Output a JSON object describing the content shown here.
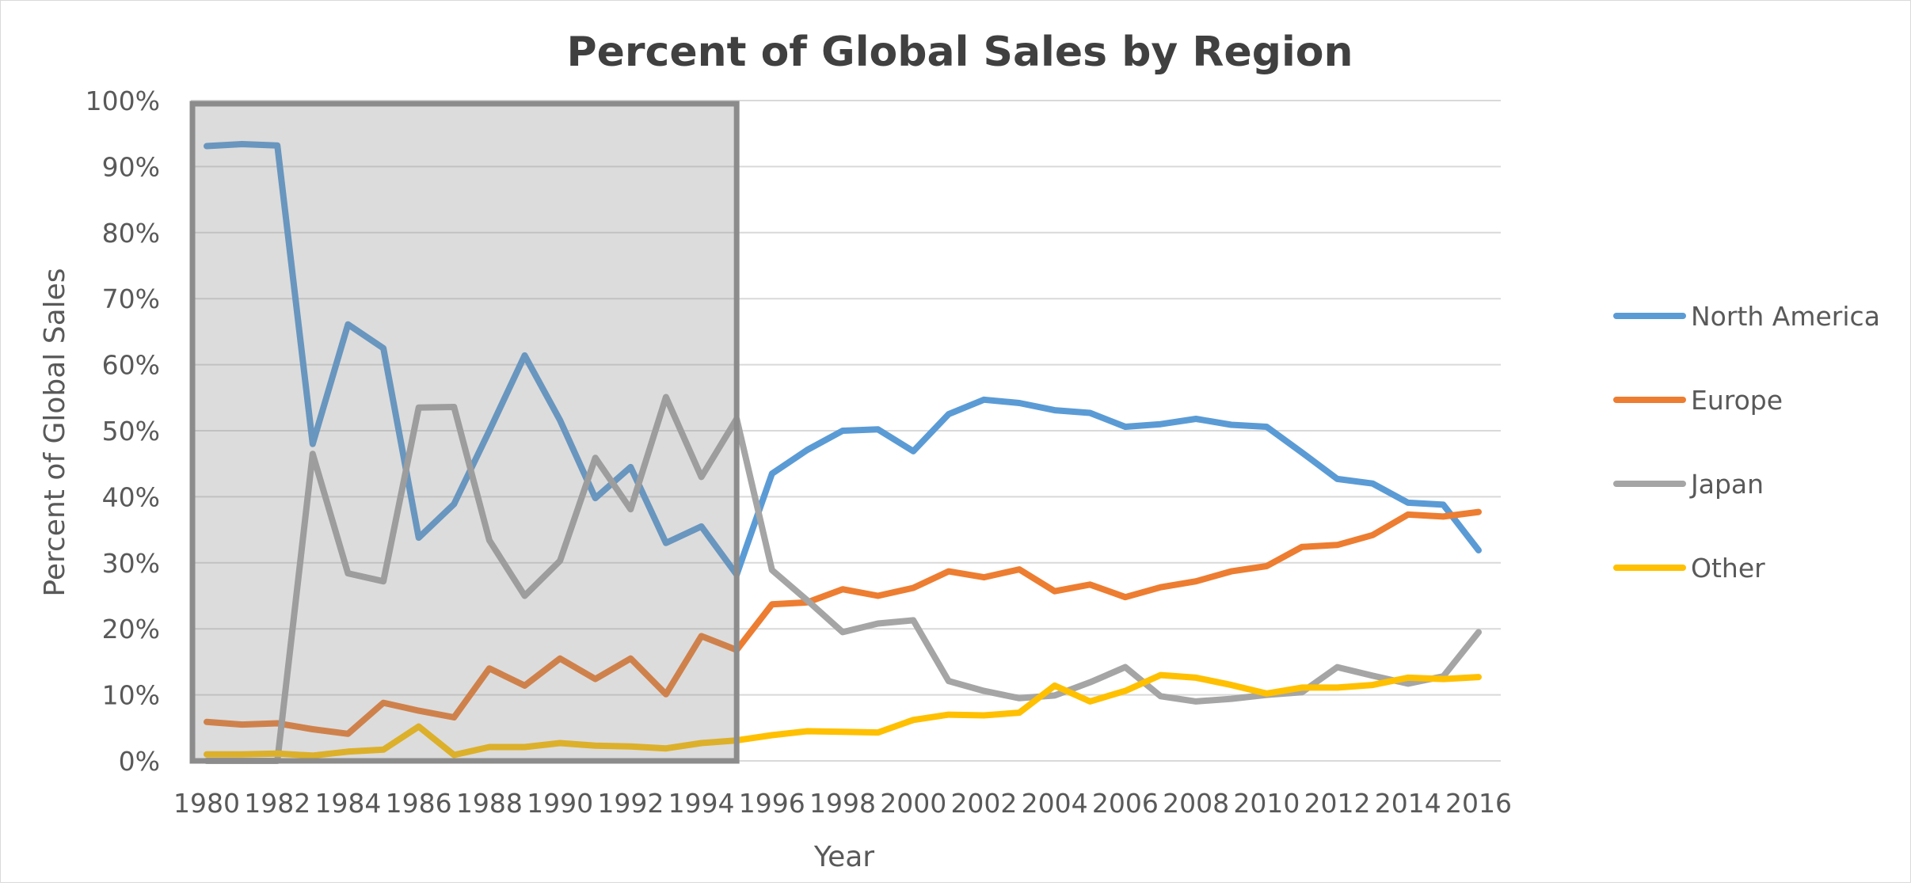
{
  "chart_data": {
    "type": "line",
    "title": "Percent of Global Sales by Region",
    "xlabel": "Year",
    "ylabel": "Percent of Global Sales",
    "ylim": [
      0,
      100
    ],
    "y_ticks": [
      "0%",
      "10%",
      "20%",
      "30%",
      "40%",
      "50%",
      "60%",
      "70%",
      "80%",
      "90%",
      "100%"
    ],
    "x_ticks": [
      "1980",
      "1982",
      "1984",
      "1986",
      "1988",
      "1990",
      "1992",
      "1994",
      "1996",
      "1998",
      "2000",
      "2002",
      "2004",
      "2006",
      "2008",
      "2010",
      "2012",
      "2014",
      "2016"
    ],
    "x": [
      1980,
      1981,
      1982,
      1983,
      1984,
      1985,
      1986,
      1987,
      1988,
      1989,
      1990,
      1991,
      1992,
      1993,
      1994,
      1995,
      1996,
      1997,
      1998,
      1999,
      2000,
      2001,
      2002,
      2003,
      2004,
      2005,
      2006,
      2007,
      2008,
      2009,
      2010,
      2011,
      2012,
      2013,
      2014,
      2015,
      2016
    ],
    "grid": true,
    "legend_position": "right",
    "highlight_region": {
      "x_start": 1980,
      "x_end": 1995
    },
    "series": [
      {
        "name": "North America",
        "color": "#5b9bd5",
        "values": [
          93.1,
          93.4,
          93.2,
          48,
          66.1,
          62.5,
          33.8,
          38.9,
          50,
          61.4,
          51.6,
          39.8,
          44.5,
          33,
          35.5,
          28.2,
          43.5,
          47.1,
          50,
          50.2,
          46.9,
          52.5,
          54.7,
          54.2,
          53.1,
          52.7,
          50.6,
          51,
          51.8,
          50.9,
          50.6,
          46.7,
          42.7,
          42,
          39.1,
          38.8,
          31.9
        ]
      },
      {
        "name": "Europe",
        "color": "#ed7d31",
        "values": [
          5.9,
          5.5,
          5.7,
          4.8,
          4.1,
          8.8,
          7.6,
          6.6,
          14,
          11.4,
          15.5,
          12.4,
          15.5,
          10.1,
          18.9,
          16.8,
          23.7,
          24,
          26,
          25,
          26.2,
          28.7,
          27.8,
          29,
          25.7,
          26.7,
          24.8,
          26.3,
          27.2,
          28.7,
          29.5,
          32.4,
          32.7,
          34.2,
          37.3,
          37,
          37.7
        ]
      },
      {
        "name": "Japan",
        "color": "#a5a5a5",
        "values": [
          0,
          0,
          0,
          46.5,
          28.4,
          27.2,
          53.5,
          53.6,
          33.4,
          25,
          30.3,
          45.9,
          38.1,
          55.1,
          43,
          51.8,
          28.9,
          24.3,
          19.5,
          20.8,
          21.3,
          12.1,
          10.6,
          9.5,
          9.9,
          11.9,
          14.2,
          9.8,
          9,
          9.4,
          10,
          10.4,
          14.2,
          12.9,
          11.7,
          12.8,
          19.5
        ]
      },
      {
        "name": "Other",
        "color": "#ffc000",
        "values": [
          1,
          1,
          1.1,
          0.8,
          1.4,
          1.7,
          5.2,
          0.9,
          2.1,
          2.1,
          2.7,
          2.3,
          2.2,
          1.9,
          2.7,
          3.1,
          3.9,
          4.5,
          4.4,
          4.3,
          6.2,
          7,
          6.9,
          7.3,
          11.4,
          9,
          10.6,
          13,
          12.6,
          11.5,
          10.2,
          11.1,
          11.1,
          11.5,
          12.6,
          12.4,
          12.7
        ]
      }
    ]
  }
}
